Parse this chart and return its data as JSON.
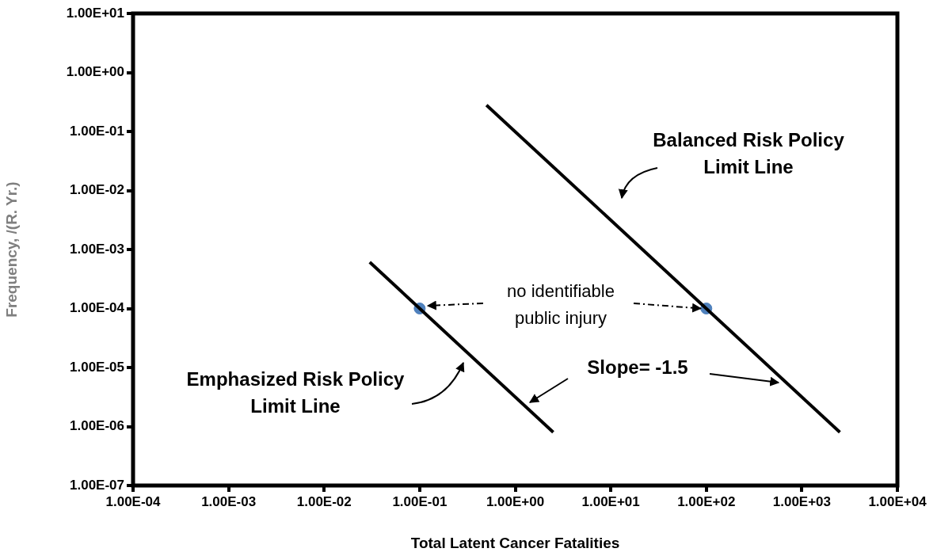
{
  "chart_data": {
    "type": "line",
    "xlabel": "Total Latent Cancer Fatalities",
    "ylabel": "Frequency, /(R. Yr.)",
    "log": "xy",
    "grid": false,
    "legend": false,
    "xlim": [
      0.0001,
      10000
    ],
    "ylim": [
      1e-07,
      10
    ],
    "xticks": [
      {
        "value": 0.0001,
        "label": "1.00E-04"
      },
      {
        "value": 0.001,
        "label": "1.00E-03"
      },
      {
        "value": 0.01,
        "label": "1.00E-02"
      },
      {
        "value": 0.1,
        "label": "1.00E-01"
      },
      {
        "value": 1,
        "label": "1.00E+00"
      },
      {
        "value": 10,
        "label": "1.00E+01"
      },
      {
        "value": 100,
        "label": "1.00E+02"
      },
      {
        "value": 1000,
        "label": "1.00E+03"
      },
      {
        "value": 10000,
        "label": "1.00E+04"
      }
    ],
    "yticks": [
      {
        "value": 1e-07,
        "label": "1.00E-07"
      },
      {
        "value": 1e-06,
        "label": "1.00E-06"
      },
      {
        "value": 1e-05,
        "label": "1.00E-05"
      },
      {
        "value": 0.0001,
        "label": "1.00E-04"
      },
      {
        "value": 0.001,
        "label": "1.00E-03"
      },
      {
        "value": 0.01,
        "label": "1.00E-02"
      },
      {
        "value": 0.1,
        "label": "1.00E-01"
      },
      {
        "value": 1,
        "label": "1.00E+00"
      },
      {
        "value": 10,
        "label": "1.00E+01"
      }
    ],
    "series": [
      {
        "color": "#000000",
        "x": [
          0.5,
          2500
        ],
        "values": [
          0.28,
          8e-07
        ]
      },
      {
        "color": "#000000",
        "x": [
          0.03,
          2.5
        ],
        "values": [
          0.00061,
          8e-07
        ]
      },
      {
        "type": "scatter",
        "color": "#4f81bd",
        "marker": "circle",
        "x": [
          0.1,
          100
        ],
        "values": [
          0.0001,
          0.0001
        ]
      }
    ],
    "annotations": [
      "Balanced Risk Policy\nLimit Line",
      {
        "text": "no identifiable\npublic injury",
        "x": 100,
        "y": 0.0001
      },
      "Slope= -1.5",
      "Emphasized Risk Policy\nLimit Line"
    ]
  }
}
